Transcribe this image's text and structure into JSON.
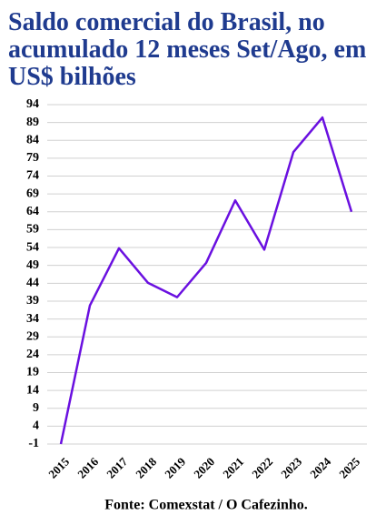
{
  "chart_data": {
    "type": "line",
    "title": "Saldo comercial do Brasil, no acumulado 12 meses Set/Ago, em US$ bilhões",
    "source": "Fonte: Comexstat / O Cafezinho.",
    "categories": [
      "2015",
      "2016",
      "2017",
      "2018",
      "2019",
      "2020",
      "2021",
      "2022",
      "2023",
      "2024",
      "2025"
    ],
    "series": [
      {
        "name": "Saldo comercial",
        "color": "#6a10e0",
        "values": [
          -1,
          37.8,
          53.8,
          44.1,
          40.1,
          49.7,
          67.2,
          53.4,
          80.7,
          90.4,
          64.0
        ]
      }
    ],
    "ylim": [
      -1,
      94
    ],
    "yticks": [
      -1,
      4,
      9,
      14,
      19,
      24,
      29,
      34,
      39,
      44,
      49,
      54,
      59,
      64,
      69,
      74,
      79,
      84,
      89,
      94
    ],
    "grid": true
  }
}
